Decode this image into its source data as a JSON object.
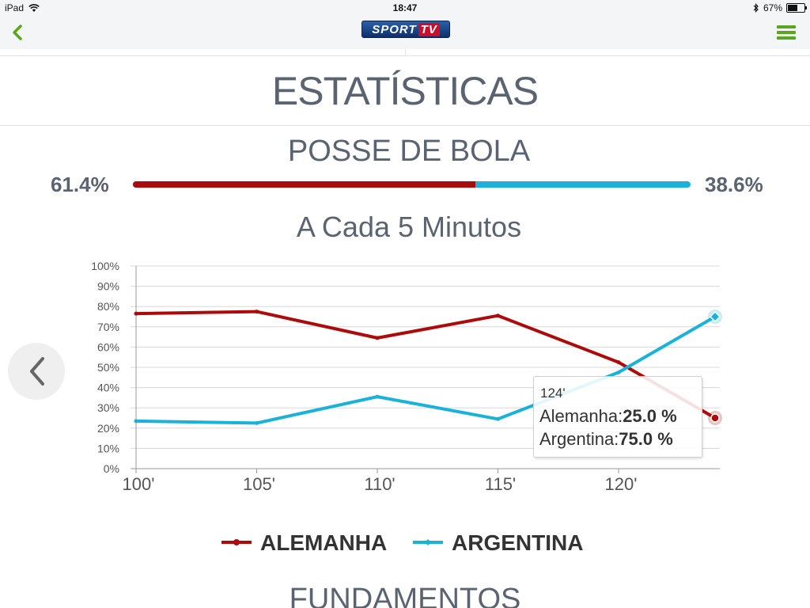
{
  "status_bar": {
    "device": "iPad",
    "time": "18:47",
    "battery": "67%",
    "battery_level": 0.67
  },
  "nav": {
    "logo": {
      "sport": "SPORT",
      "tv": "TV"
    }
  },
  "page_title": "ESTATÍSTICAS",
  "possession": {
    "title": "POSSE DE BOLA",
    "home_label": "61.4%",
    "away_label": "38.6%",
    "home_fraction": 0.614,
    "home_color": "#ad0b0b",
    "away_color": "#1ab2d8"
  },
  "chart_title": "A Cada 5 Minutos",
  "tooltip": {
    "x_label": "124'",
    "rows": [
      {
        "name": "Alemanha:",
        "value": "25.0 %"
      },
      {
        "name": "Argentina:",
        "value": "75.0 %"
      }
    ]
  },
  "next_section_title": "FUNDAMENTOS",
  "chart_data": {
    "type": "line",
    "title": "A Cada 5 Minutos",
    "x": [
      100,
      105,
      110,
      115,
      120,
      124
    ],
    "x_tick_labels": [
      "100'",
      "105'",
      "110'",
      "115'",
      "120'"
    ],
    "x_tick_values": [
      100,
      105,
      110,
      115,
      120
    ],
    "y_tick_labels": [
      "0%",
      "10%",
      "20%",
      "30%",
      "40%",
      "50%",
      "60%",
      "70%",
      "80%",
      "90%",
      "100%"
    ],
    "xlim": [
      100,
      124
    ],
    "ylim": [
      0,
      100
    ],
    "grid": true,
    "legend_position": "bottom",
    "series": [
      {
        "name": "ALEMANHA",
        "color": "#ad0b0b",
        "values": [
          76.5,
          77.5,
          64.5,
          75.5,
          52.5,
          25.0
        ]
      },
      {
        "name": "ARGENTINA",
        "color": "#1ab2d8",
        "values": [
          23.5,
          22.5,
          35.5,
          24.5,
          47.5,
          75.0
        ]
      }
    ],
    "highlight_index": 5
  }
}
